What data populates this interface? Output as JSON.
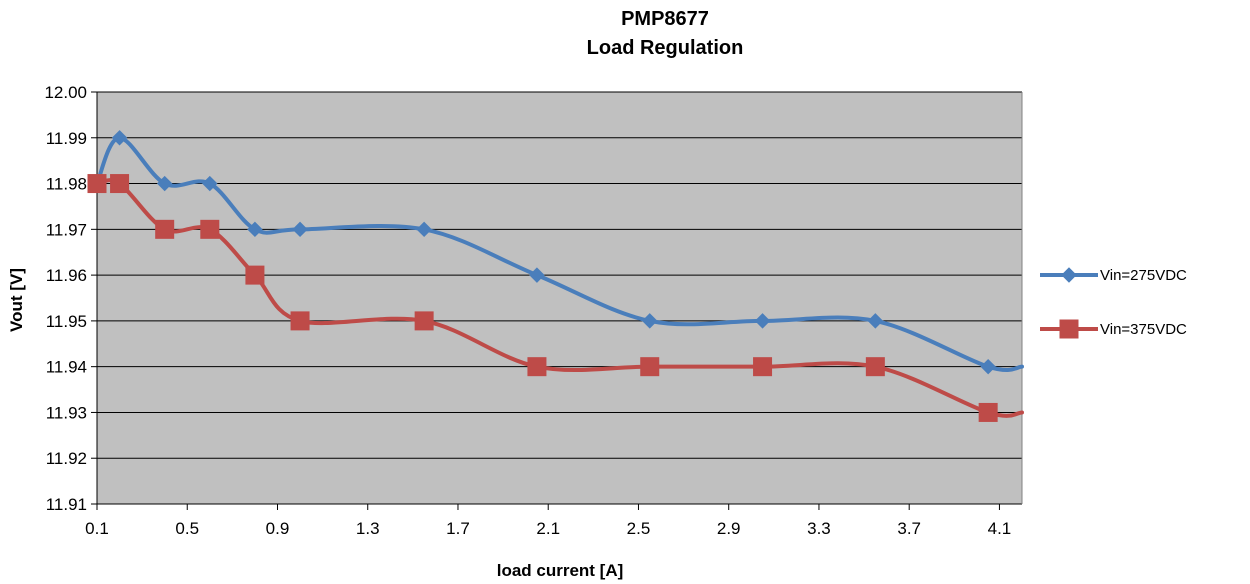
{
  "chart_data": {
    "type": "line",
    "title": "PMP8677",
    "subtitle": "Load Regulation",
    "xlabel": "load current [A]",
    "ylabel": "Vout [V]",
    "xlim": [
      0.1,
      4.2
    ],
    "ylim": [
      11.91,
      12.0
    ],
    "x_ticks": [
      "0.1",
      "0.5",
      "0.9",
      "1.3",
      "1.7",
      "2.1",
      "2.5",
      "2.9",
      "3.3",
      "3.7",
      "4.1"
    ],
    "x_tick_values": [
      0.1,
      0.5,
      0.9,
      1.3,
      1.7,
      2.1,
      2.5,
      2.9,
      3.3,
      3.7,
      4.1
    ],
    "y_ticks": [
      "11.91",
      "11.92",
      "11.93",
      "11.94",
      "11.95",
      "11.96",
      "11.97",
      "11.98",
      "11.99",
      "12.00"
    ],
    "y_tick_values": [
      11.91,
      11.92,
      11.93,
      11.94,
      11.95,
      11.96,
      11.97,
      11.98,
      11.99,
      12.0
    ],
    "grid": "horizontal",
    "legend_position": "right",
    "plot_background": "#c0c0c0",
    "series": [
      {
        "name": "Vin=275VDC",
        "color": "#4a7ebb",
        "marker": "diamond",
        "x": [
          0.1,
          0.2,
          0.4,
          0.6,
          0.8,
          1.0,
          1.55,
          2.05,
          2.55,
          3.05,
          3.55,
          4.05
        ],
        "y": [
          11.98,
          11.99,
          11.98,
          11.98,
          11.97,
          11.97,
          11.97,
          11.96,
          11.95,
          11.95,
          11.95,
          11.94
        ]
      },
      {
        "name": "Vin=375VDC",
        "color": "#be4b48",
        "marker": "square",
        "x": [
          0.1,
          0.2,
          0.4,
          0.6,
          0.8,
          1.0,
          1.55,
          2.05,
          2.55,
          3.05,
          3.55,
          4.05
        ],
        "y": [
          11.98,
          11.98,
          11.97,
          11.97,
          11.96,
          11.95,
          11.95,
          11.94,
          11.94,
          11.94,
          11.94,
          11.93
        ]
      }
    ]
  }
}
